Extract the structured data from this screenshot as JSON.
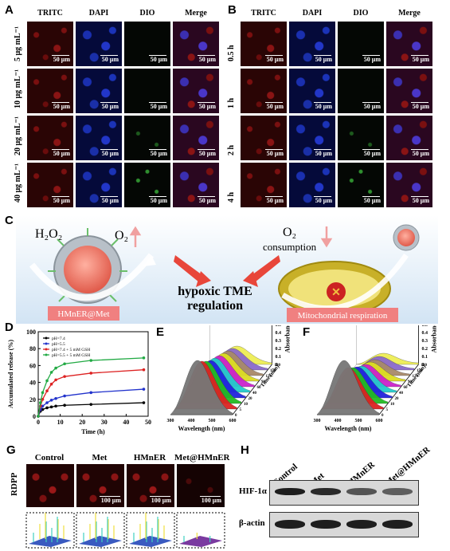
{
  "panelA": {
    "label": "A",
    "columns": [
      "TRITC",
      "DAPI",
      "DIO",
      "Merge"
    ],
    "rows": [
      "5 μg mL⁻¹",
      "10 μg mL⁻¹",
      "20 μg mL⁻¹",
      "40 μg mL⁻¹"
    ],
    "scale_bar": "50 μm"
  },
  "panelB": {
    "label": "B",
    "columns": [
      "TRITC",
      "DAPI",
      "DIO",
      "Merge"
    ],
    "rows": [
      "0.5 h",
      "1 h",
      "2 h",
      "4 h"
    ],
    "scale_bar": "50 μm"
  },
  "panelC": {
    "label": "C",
    "h2o2": "H₂O₂",
    "o2_left": "O₂",
    "o2_right": "O₂",
    "consumption": "consumption",
    "center_line1": "hypoxic TME",
    "center_line2": "regulation",
    "left_box": "HMnER@Met",
    "right_box": "Mitochondrial respiration",
    "colors": {
      "arrow_red": "#e8463a",
      "box_pink": "#f08080"
    }
  },
  "panelD": {
    "label": "D",
    "chart_data": {
      "type": "line",
      "xlabel": "Time (h)",
      "ylabel": "Accumulated release (%)",
      "xlim": [
        0,
        50
      ],
      "ylim": [
        0,
        100
      ],
      "xticks": [
        "0",
        "10",
        "20",
        "30",
        "40",
        "50"
      ],
      "yticks": [
        "0",
        "20",
        "40",
        "60",
        "80",
        "100"
      ],
      "x": [
        0,
        1,
        2,
        4,
        6,
        8,
        12,
        24,
        48
      ],
      "series": [
        {
          "name": "pH=7.4",
          "color": "#000000",
          "values": [
            0,
            6,
            8,
            10,
            11,
            12,
            13,
            14,
            16
          ]
        },
        {
          "name": "pH=5.5",
          "color": "#2233cc",
          "values": [
            0,
            8,
            12,
            16,
            19,
            21,
            24,
            28,
            32
          ]
        },
        {
          "name": "pH=7.4 + 5 mM GSH",
          "color": "#dd2222",
          "values": [
            0,
            12,
            20,
            30,
            38,
            43,
            47,
            51,
            55
          ]
        },
        {
          "name": "pH=5.5 + 5 mM GSH",
          "color": "#22aa44",
          "values": [
            0,
            16,
            28,
            42,
            52,
            57,
            62,
            66,
            69
          ]
        }
      ]
    }
  },
  "panelE": {
    "label": "E",
    "chart_data": {
      "type": "line",
      "xlabel": "Wavelength (nm)",
      "ylabel": "Absorbance",
      "zlabel": "Time (min)",
      "xticks": [
        "300",
        "400",
        "500",
        "600"
      ],
      "yticks": [
        "0",
        "0.1",
        "0.2",
        "0.3",
        "0.4",
        "0.5",
        "0.6",
        "0.7"
      ],
      "zticks": [
        "0",
        "5",
        "10",
        "20",
        "40",
        "60",
        "90",
        "120",
        "150",
        "180"
      ],
      "series_colors": [
        "#777777",
        "#dd2222",
        "#22bb22",
        "#2222dd",
        "#22cccc",
        "#cc22cc",
        "#dddd22",
        "#a88a6a",
        "#8a6acc",
        "#eeee55"
      ],
      "peak_values": [
        0.68,
        0.6,
        0.53,
        0.47,
        0.43,
        0.39,
        0.35,
        0.31,
        0.27,
        0.23
      ]
    }
  },
  "panelF": {
    "label": "F",
    "chart_data": {
      "type": "line",
      "xlabel": "Wavelength (nm)",
      "ylabel": "Absorbance",
      "zlabel": "Time (min)",
      "xticks": [
        "300",
        "400",
        "500",
        "600"
      ],
      "yticks": [
        "0",
        "0.1",
        "0.2",
        "0.3",
        "0.4",
        "0.5",
        "0.6",
        "0.7"
      ],
      "zticks": [
        "0",
        "5",
        "10",
        "20",
        "40",
        "60",
        "90",
        "120",
        "150",
        "180"
      ],
      "series_colors": [
        "#777777",
        "#dd2222",
        "#22bb22",
        "#2222dd",
        "#22cccc",
        "#cc22cc",
        "#dddd22",
        "#a88a6a",
        "#8a6acc",
        "#eeee55"
      ],
      "peak_values": [
        0.68,
        0.52,
        0.45,
        0.39,
        0.33,
        0.28,
        0.24,
        0.2,
        0.17,
        0.14
      ]
    }
  },
  "panelG": {
    "label": "G",
    "row_label": "RDPP",
    "columns": [
      "Control",
      "Met",
      "HMnER",
      "Met@HMnER"
    ],
    "scale_bar": "100 μm"
  },
  "panelH": {
    "label": "H",
    "columns": [
      "Control",
      "Met",
      "HMnER",
      "Met@HMnER"
    ],
    "bands": [
      "HIF-1α",
      "β-actin"
    ]
  }
}
